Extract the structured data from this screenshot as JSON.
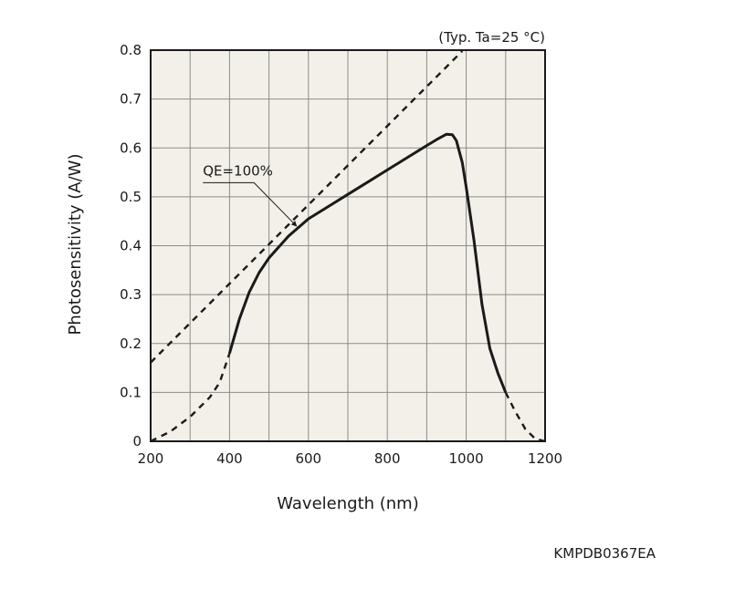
{
  "chart_data": {
    "type": "line",
    "condition_note": "(Typ. Ta=25 °C)",
    "xlabel": "Wavelength (nm)",
    "ylabel": "Photosensitivity (A/W)",
    "xlim": [
      200,
      1200
    ],
    "ylim": [
      0,
      0.8
    ],
    "x_ticks": [
      "200",
      "400",
      "600",
      "800",
      "1000",
      "1200"
    ],
    "y_ticks": [
      "0",
      "0.1",
      "0.2",
      "0.3",
      "0.4",
      "0.5",
      "0.6",
      "0.7",
      "0.8"
    ],
    "grid": true,
    "background_color": "#f2f0e8",
    "line_color": "#1a1a1a",
    "series": [
      {
        "style": "solid",
        "x": [
          400,
          425,
          450,
          475,
          500,
          550,
          600,
          650,
          700,
          750,
          800,
          850,
          900,
          925,
          950,
          965,
          975,
          990,
          1000,
          1020,
          1040,
          1060,
          1080,
          1100
        ],
        "y": [
          0.18,
          0.25,
          0.305,
          0.345,
          0.375,
          0.42,
          0.455,
          0.48,
          0.505,
          0.53,
          0.555,
          0.58,
          0.605,
          0.617,
          0.628,
          0.627,
          0.615,
          0.57,
          0.52,
          0.41,
          0.28,
          0.19,
          0.14,
          0.1
        ]
      },
      {
        "style": "dashed",
        "x": [
          200,
          250,
          300,
          350,
          375,
          400
        ],
        "y": [
          0.0,
          0.02,
          0.05,
          0.09,
          0.12,
          0.18
        ]
      },
      {
        "style": "dashed",
        "x": [
          1100,
          1125,
          1150,
          1175,
          1200
        ],
        "y": [
          0.1,
          0.06,
          0.025,
          0.005,
          0.0
        ]
      },
      {
        "name": "QE=100%",
        "style": "dashed",
        "x": [
          200,
          990
        ],
        "y": [
          0.1612,
          0.7981
        ]
      }
    ],
    "annotations": [
      {
        "text": "QE=100%",
        "x": 300,
        "y": 0.54,
        "arrow_to": [
          570,
          0.44
        ]
      }
    ]
  },
  "figure_code": "KMPDB0367EA"
}
